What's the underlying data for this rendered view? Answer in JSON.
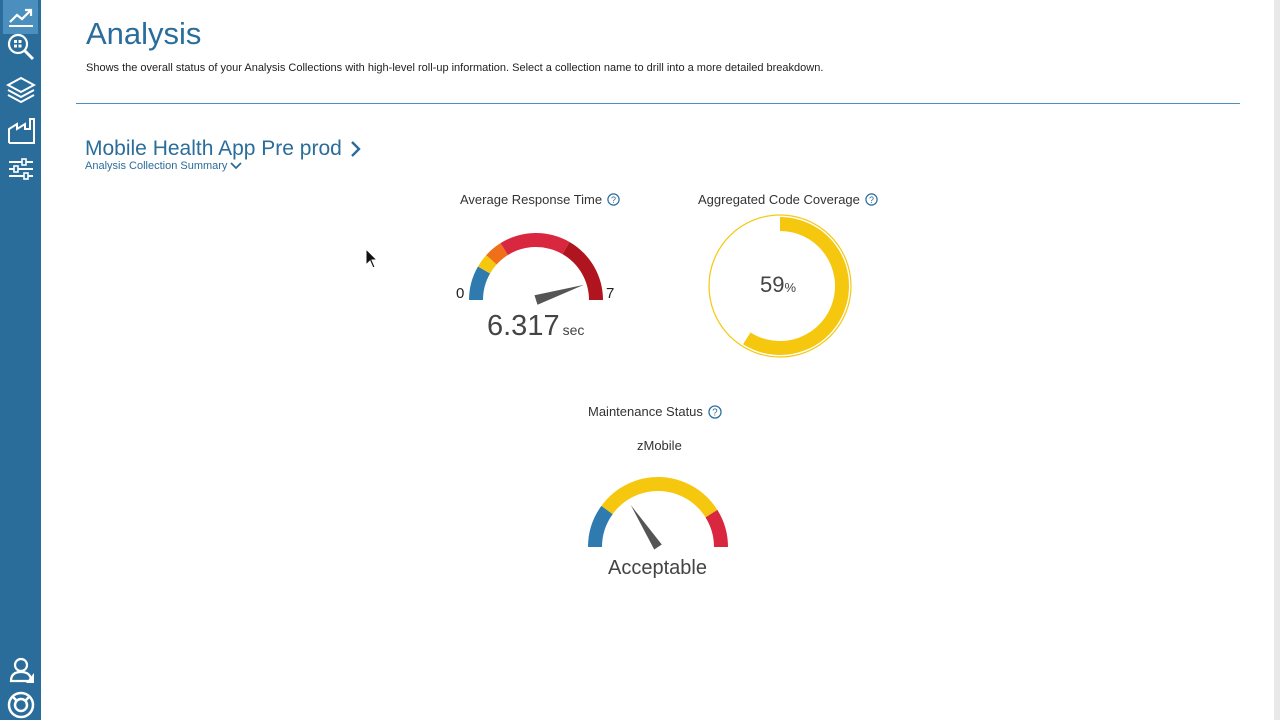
{
  "sidebar": {
    "items": [
      {
        "icon": "trend-chart-icon",
        "active": true
      },
      {
        "icon": "search-analysis-icon"
      },
      {
        "icon": "layers-icon"
      },
      {
        "icon": "factory-icon"
      },
      {
        "icon": "sliders-icon"
      },
      {
        "icon": "user-icon"
      },
      {
        "icon": "lifebuoy-icon"
      }
    ]
  },
  "header": {
    "title": "Analysis",
    "description": "Shows the overall status of your Analysis Collections with high-level roll-up information. Select a collection name to drill into a more detailed breakdown."
  },
  "collection": {
    "name": "Mobile Health App Pre prod",
    "subtitle": "Analysis Collection Summary"
  },
  "response_time": {
    "label": "Average Response Time",
    "min": "0",
    "max": "7",
    "value": "6.317",
    "unit": "sec",
    "value_number": 6.317,
    "range": [
      0,
      7
    ]
  },
  "code_coverage": {
    "label": "Aggregated Code Coverage",
    "value": "59",
    "unit": "%",
    "fraction": 0.59,
    "color": "#f5c80f"
  },
  "maintenance": {
    "label": "Maintenance Status",
    "subject": "zMobile",
    "status": "Acceptable"
  },
  "colors": {
    "brand": "#2a6d9b",
    "gauge_blue": "#2f7bb0",
    "gauge_yellow": "#f5c80f",
    "gauge_red": "#d9273f",
    "gauge_dark_red": "#b0141f",
    "needle": "#555555"
  }
}
